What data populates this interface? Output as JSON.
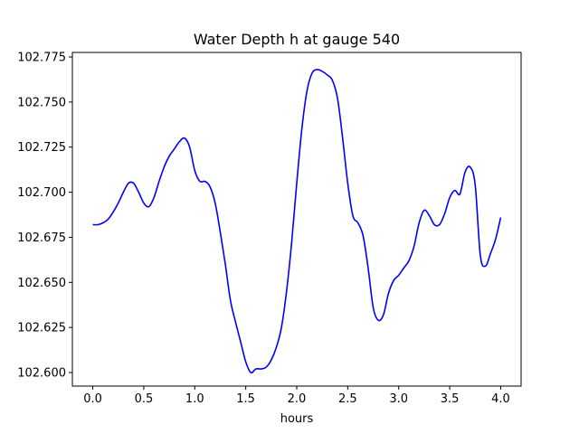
{
  "chart_data": {
    "type": "line",
    "title": "Water Depth h at gauge 540",
    "xlabel": "hours",
    "ylabel": "",
    "xlim": [
      -0.2,
      4.2
    ],
    "ylim": [
      102.5925,
      102.7775
    ],
    "xticks": [
      0.0,
      0.5,
      1.0,
      1.5,
      2.0,
      2.5,
      3.0,
      3.5,
      4.0
    ],
    "xtick_labels": [
      "0.0",
      "0.5",
      "1.0",
      "1.5",
      "2.0",
      "2.5",
      "3.0",
      "3.5",
      "4.0"
    ],
    "yticks": [
      102.6,
      102.625,
      102.65,
      102.675,
      102.7,
      102.725,
      102.75,
      102.775
    ],
    "ytick_labels": [
      "102.600",
      "102.625",
      "102.650",
      "102.675",
      "102.700",
      "102.725",
      "102.750",
      "102.775"
    ],
    "grid": false,
    "series": [
      {
        "color": "#0000ff",
        "x": [
          0.0,
          0.05,
          0.1,
          0.15,
          0.2,
          0.25,
          0.3,
          0.35,
          0.4,
          0.45,
          0.5,
          0.55,
          0.6,
          0.65,
          0.7,
          0.75,
          0.8,
          0.85,
          0.9,
          0.95,
          1.0,
          1.05,
          1.1,
          1.15,
          1.2,
          1.25,
          1.3,
          1.35,
          1.4,
          1.45,
          1.5,
          1.55,
          1.6,
          1.65,
          1.7,
          1.75,
          1.8,
          1.85,
          1.9,
          1.95,
          2.0,
          2.05,
          2.1,
          2.15,
          2.2,
          2.25,
          2.3,
          2.35,
          2.4,
          2.45,
          2.5,
          2.55,
          2.6,
          2.65,
          2.7,
          2.75,
          2.8,
          2.85,
          2.9,
          2.95,
          3.0,
          3.05,
          3.1,
          3.15,
          3.2,
          3.25,
          3.3,
          3.35,
          3.4,
          3.45,
          3.5,
          3.55,
          3.6,
          3.65,
          3.7,
          3.75,
          3.8,
          3.85,
          3.9,
          3.95,
          4.0
        ],
        "y": [
          102.682,
          102.682,
          102.683,
          102.685,
          102.689,
          102.694,
          102.7,
          102.705,
          102.705,
          102.7,
          102.694,
          102.692,
          102.697,
          102.706,
          102.714,
          102.72,
          102.724,
          102.728,
          102.73,
          102.725,
          102.712,
          102.706,
          102.706,
          102.703,
          102.694,
          102.678,
          102.66,
          102.64,
          102.628,
          102.617,
          102.606,
          102.6,
          102.602,
          102.602,
          102.603,
          102.607,
          102.614,
          102.625,
          102.645,
          102.672,
          102.705,
          102.735,
          102.756,
          102.766,
          102.768,
          102.767,
          102.765,
          102.762,
          102.752,
          102.73,
          102.705,
          102.687,
          102.683,
          102.676,
          102.658,
          102.636,
          102.629,
          102.632,
          102.644,
          102.651,
          102.654,
          102.658,
          102.662,
          102.67,
          102.683,
          102.69,
          102.687,
          102.682,
          102.682,
          102.688,
          102.697,
          102.701,
          102.699,
          102.711,
          102.714,
          102.704,
          102.665,
          102.659,
          102.666,
          102.674,
          102.686
        ]
      }
    ]
  }
}
